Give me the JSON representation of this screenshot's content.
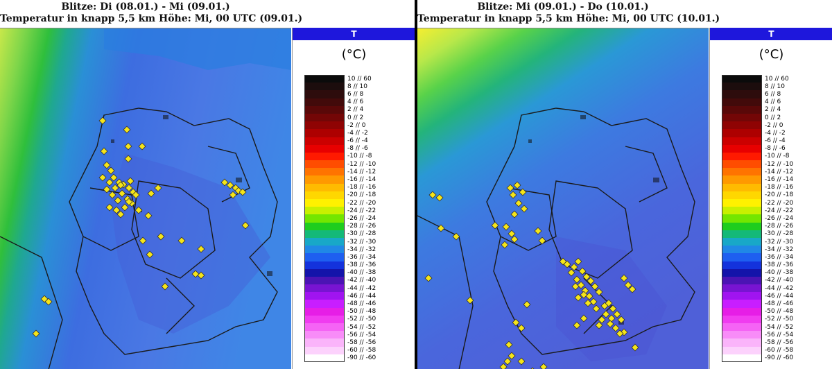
{
  "panels": [
    {
      "title_line1": "Blitze: Di (08.01.) - Mi (09.01.)",
      "title_line2": "Temperatur in knapp 5,5 km Höhe: Mi, 00 UTC (09.01.)",
      "parameter_tab": "T",
      "unit": "(°C)",
      "lightning_strikes": 60
    },
    {
      "title_line1": "Blitze: Mi (09.01.) - Do (10.01.)",
      "title_line2": "Temperatur in knapp 5,5 km Höhe: Mi, 00 UTC (10.01.)",
      "parameter_tab": "T",
      "unit": "(°C)",
      "lightning_strikes": 80
    }
  ],
  "legend": [
    {
      "label": "10 // 60",
      "color": "#0b0b0b"
    },
    {
      "label": "8 // 10",
      "color": "#1c0d0d"
    },
    {
      "label": "6 // 8",
      "color": "#2d0c0c"
    },
    {
      "label": "4 // 6",
      "color": "#420a0a"
    },
    {
      "label": "2 // 4",
      "color": "#590808"
    },
    {
      "label": "0 // 2",
      "color": "#730606"
    },
    {
      "label": "-2 // 0",
      "color": "#8f0303"
    },
    {
      "label": "-4 // -2",
      "color": "#ad0000"
    },
    {
      "label": "-6 // -4",
      "color": "#cc0000"
    },
    {
      "label": "-8 // -6",
      "color": "#e80000"
    },
    {
      "label": "-10 // -8",
      "color": "#ff1a00"
    },
    {
      "label": "-12 // -10",
      "color": "#ff4d00"
    },
    {
      "label": "-14 // -12",
      "color": "#ff7300"
    },
    {
      "label": "-16 // -14",
      "color": "#ff9900"
    },
    {
      "label": "-18 // -16",
      "color": "#ffbb00"
    },
    {
      "label": "-20 // -18",
      "color": "#ffd700"
    },
    {
      "label": "-22 // -20",
      "color": "#fff100"
    },
    {
      "label": "-24 // -22",
      "color": "#c8f000"
    },
    {
      "label": "-26 // -24",
      "color": "#73e600"
    },
    {
      "label": "-28 // -26",
      "color": "#1ecd1e"
    },
    {
      "label": "-30 // -28",
      "color": "#14b978"
    },
    {
      "label": "-32 // -30",
      "color": "#18a8c8"
    },
    {
      "label": "-34 // -32",
      "color": "#2088e6"
    },
    {
      "label": "-36 // -34",
      "color": "#1e5ff0"
    },
    {
      "label": "-38 // -36",
      "color": "#1432dc"
    },
    {
      "label": "-40 // -38",
      "color": "#1414aa"
    },
    {
      "label": "-42 // -40",
      "color": "#4b14b4"
    },
    {
      "label": "-44 // -42",
      "color": "#7814d2"
    },
    {
      "label": "-46 // -44",
      "color": "#a014f0"
    },
    {
      "label": "-48 // -46",
      "color": "#c81eff"
    },
    {
      "label": "-50 // -48",
      "color": "#e61ee6"
    },
    {
      "label": "-52 // -50",
      "color": "#f03cf0"
    },
    {
      "label": "-54 // -52",
      "color": "#f564f5"
    },
    {
      "label": "-56 // -54",
      "color": "#f88cf8"
    },
    {
      "label": "-58 // -56",
      "color": "#fab4fa"
    },
    {
      "label": "-60 // -58",
      "color": "#fcd2fc"
    },
    {
      "label": "-90 // -60",
      "color": "#ffffff"
    }
  ]
}
